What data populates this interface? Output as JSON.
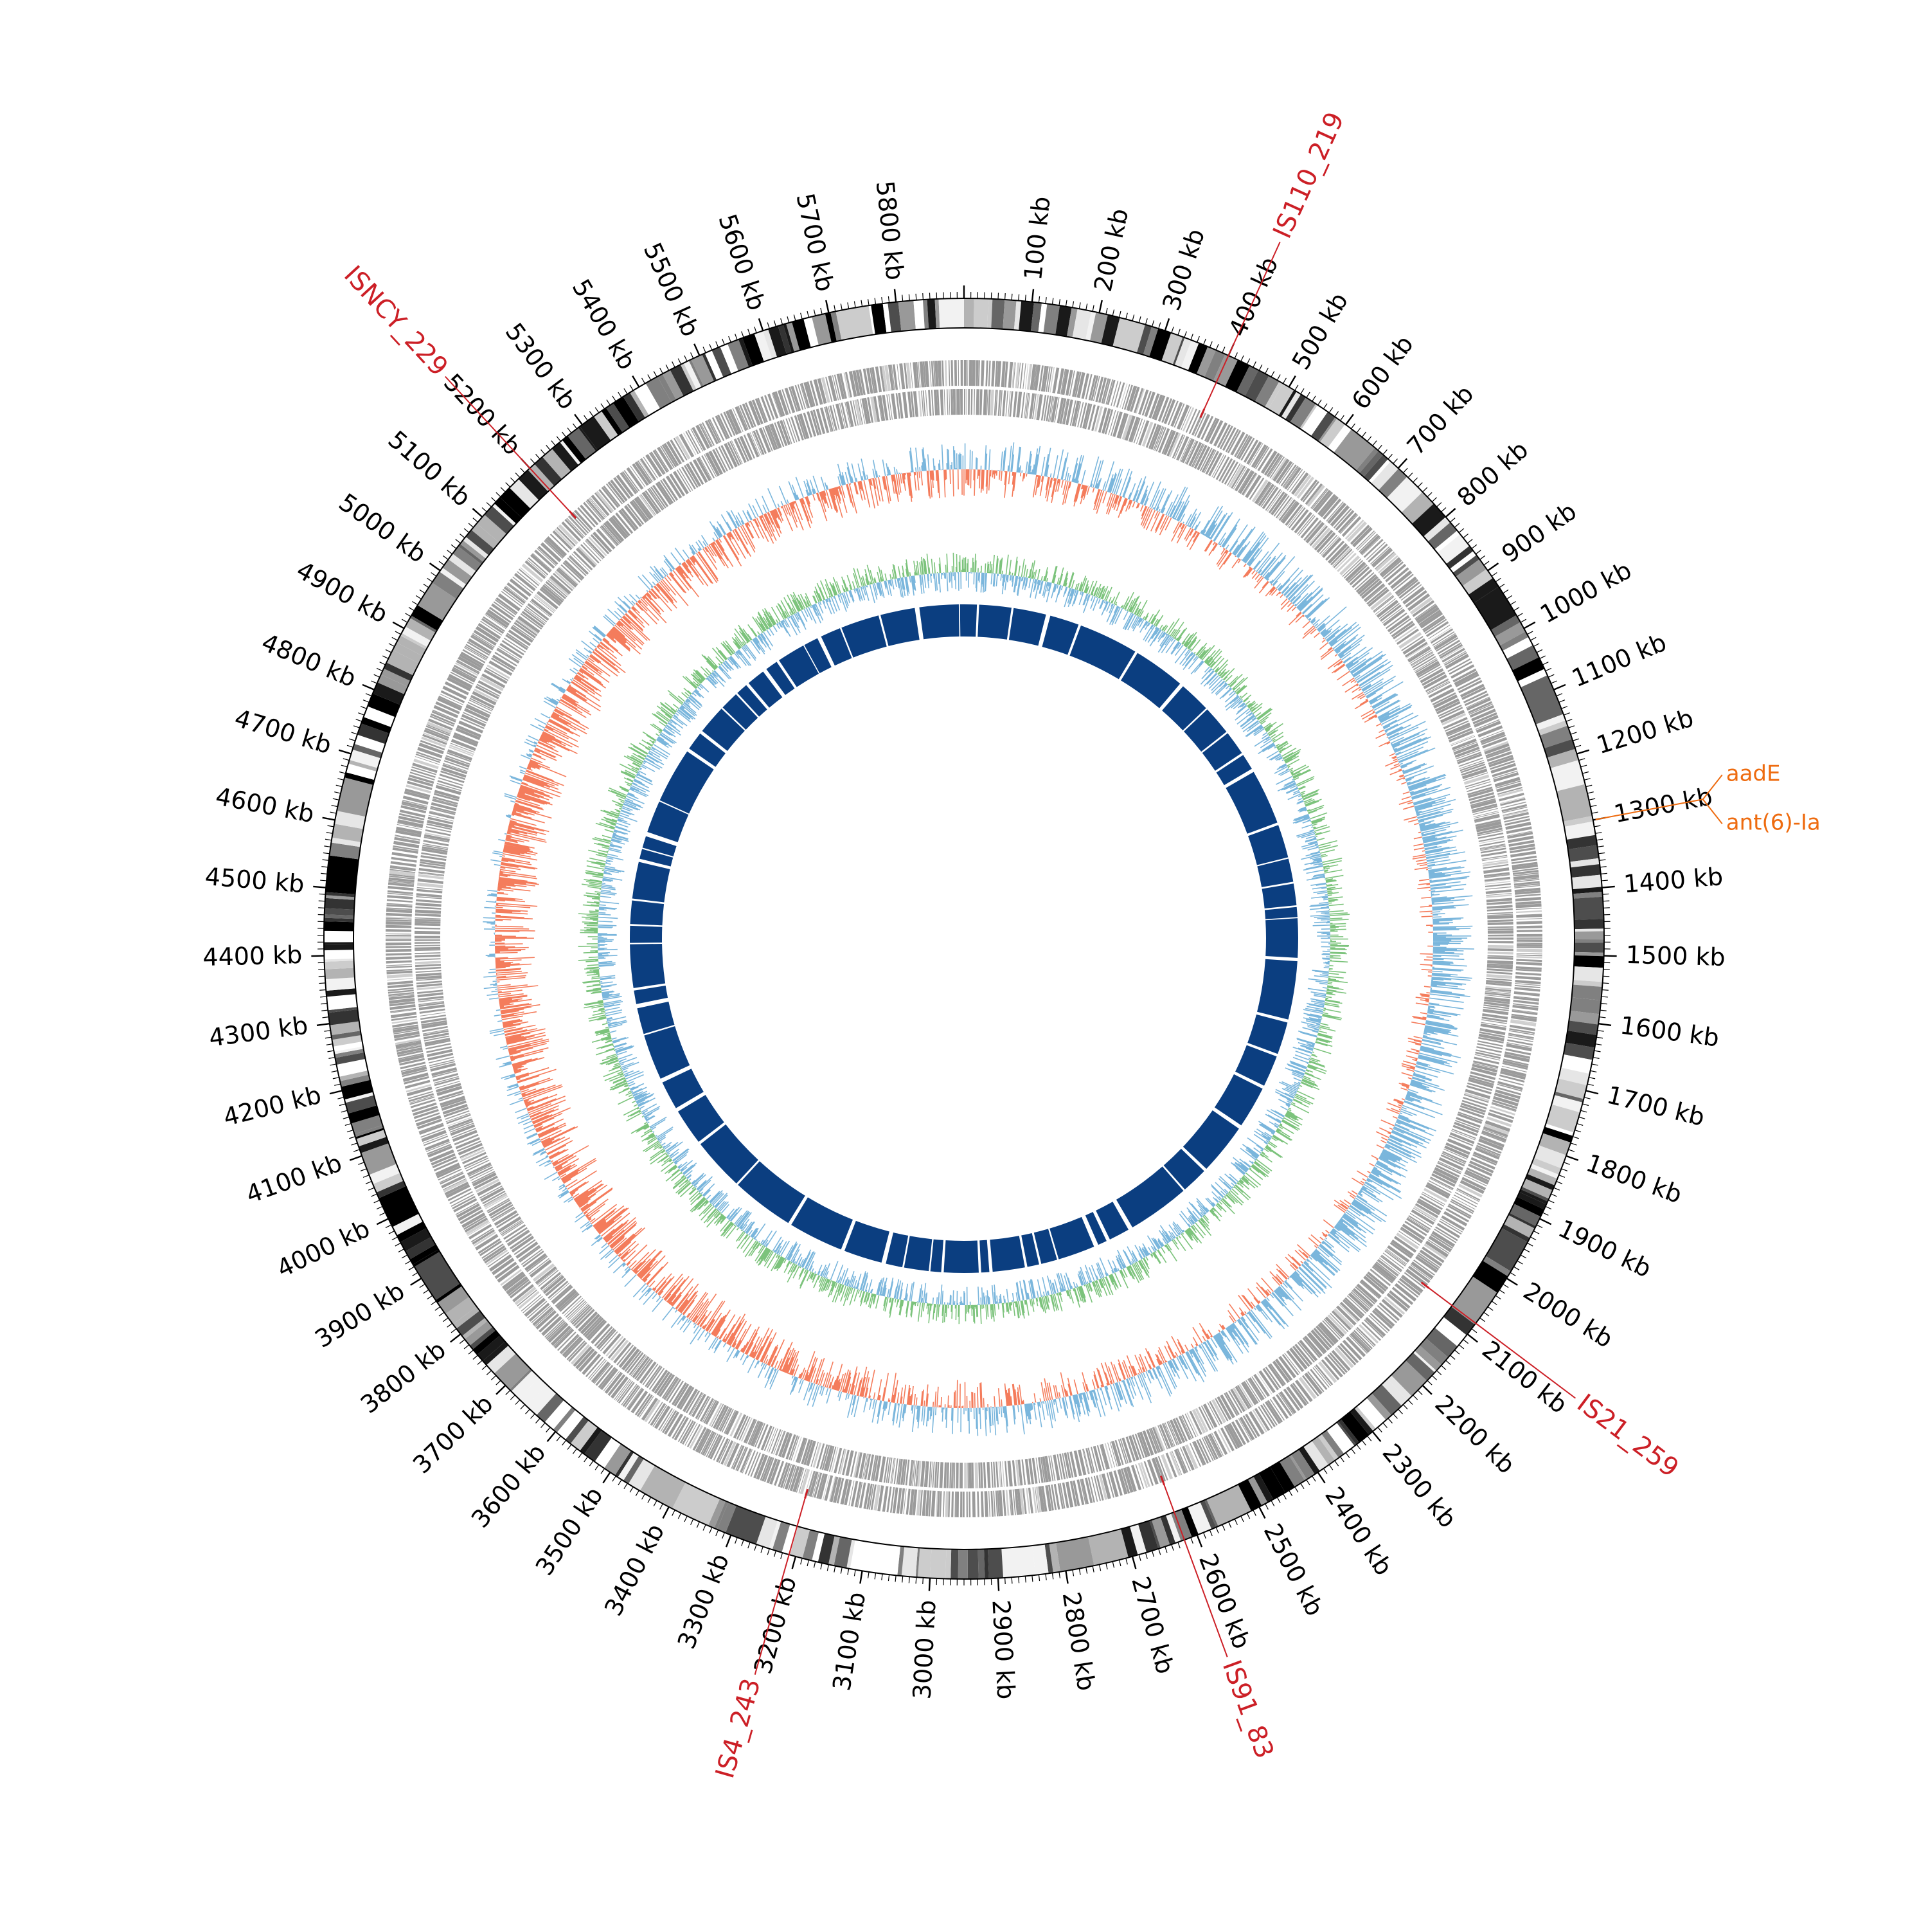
{
  "genome": {
    "length_kb": 5900,
    "tick_label_suffix": " kb",
    "tick_labels_kb": [
      100,
      200,
      300,
      400,
      500,
      600,
      700,
      800,
      900,
      1000,
      1100,
      1200,
      1300,
      1400,
      1500,
      1600,
      1700,
      1800,
      1900,
      2000,
      2100,
      2200,
      2300,
      2400,
      2500,
      2600,
      2700,
      2800,
      2900,
      3000,
      3100,
      3200,
      3300,
      3400,
      3500,
      3600,
      3700,
      3800,
      3900,
      4000,
      4100,
      4200,
      4300,
      4400,
      4500,
      4600,
      4700,
      4800,
      4900,
      5000,
      5100,
      5200,
      5300,
      5400,
      5500,
      5600,
      5700,
      5800
    ]
  },
  "insertion_sequences": [
    {
      "label": "IS110_219",
      "position_kb": 400
    },
    {
      "label": "IS21_259",
      "position_kb": 2080
    },
    {
      "label": "IS91_83",
      "position_kb": 2620
    },
    {
      "label": "IS4_243",
      "position_kb": 3210
    },
    {
      "label": "ISNCY_229",
      "position_kb": 5200
    }
  ],
  "resistance_genes": [
    {
      "label": "aadE",
      "position_kb": 1300
    },
    {
      "label": "ant(6)-Ia",
      "position_kb": 1300
    }
  ],
  "colors": {
    "is_marker": "#cc1f26",
    "resistance_gene": "#ee6b0f",
    "karyotype_dark": "#000000",
    "cds_track": "#9b9b9b",
    "gc_skew_positive": "#7ab6dc",
    "gc_skew_negative": "#f47c5c",
    "gc_content": "#7cc37c",
    "inner_ring": "#0b3e80"
  }
}
